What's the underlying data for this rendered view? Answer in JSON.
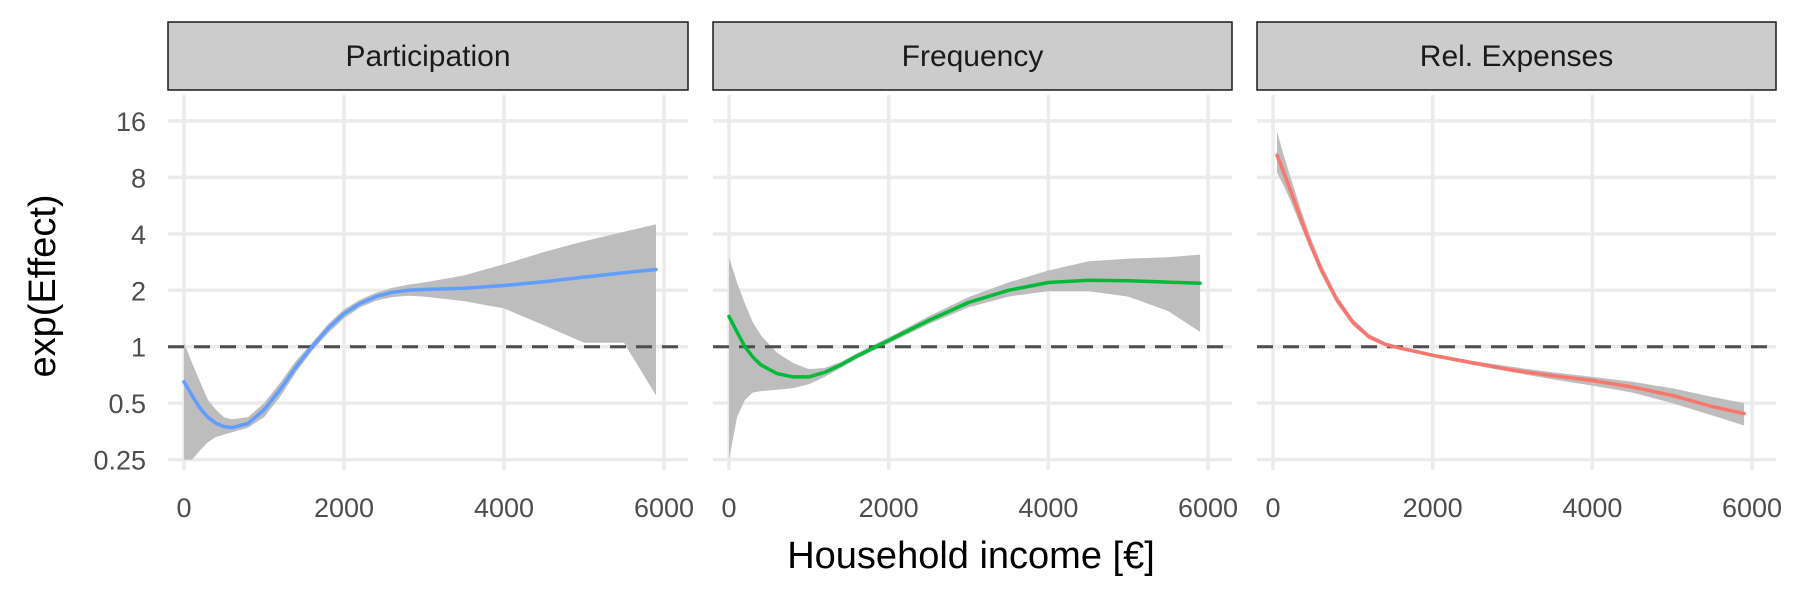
{
  "chart_data": {
    "type": "line",
    "xlabel": "Household income [€]",
    "ylabel": "exp(Effect)",
    "y_scale": "log2",
    "xlim": [
      -200,
      6300
    ],
    "ylim": [
      0.22,
      22
    ],
    "x_ticks": [
      0,
      2000,
      4000,
      6000
    ],
    "x_tick_labels": [
      "0",
      "2000",
      "4000",
      "6000"
    ],
    "y_ticks": [
      0.25,
      0.5,
      1,
      2,
      4,
      8,
      16
    ],
    "y_tick_labels": [
      "0.25",
      "0.5",
      "1",
      "2",
      "4",
      "8",
      "16"
    ],
    "reference_line_y": 1,
    "grid": true,
    "panels": [
      {
        "title": "Participation",
        "color": "#619CFF",
        "x": [
          0,
          100,
          200,
          300,
          400,
          500,
          600,
          800,
          1000,
          1200,
          1400,
          1600,
          1800,
          2000,
          2200,
          2400,
          2600,
          2800,
          3000,
          3500,
          4000,
          4500,
          5000,
          5500,
          5900
        ],
        "y": [
          0.65,
          0.55,
          0.47,
          0.42,
          0.39,
          0.375,
          0.37,
          0.39,
          0.46,
          0.59,
          0.78,
          1.0,
          1.25,
          1.5,
          1.7,
          1.85,
          1.95,
          2.0,
          2.02,
          2.05,
          2.12,
          2.22,
          2.35,
          2.48,
          2.58
        ],
        "lower": [
          0.25,
          0.25,
          0.28,
          0.31,
          0.33,
          0.34,
          0.35,
          0.37,
          0.42,
          0.54,
          0.73,
          0.95,
          1.18,
          1.42,
          1.62,
          1.76,
          1.84,
          1.87,
          1.85,
          1.75,
          1.6,
          1.3,
          1.05,
          1.05,
          0.55
        ],
        "upper": [
          1.05,
          0.82,
          0.65,
          0.52,
          0.46,
          0.42,
          0.41,
          0.42,
          0.5,
          0.64,
          0.84,
          1.05,
          1.32,
          1.58,
          1.78,
          1.94,
          2.06,
          2.14,
          2.2,
          2.4,
          2.75,
          3.2,
          3.65,
          4.1,
          4.5
        ]
      },
      {
        "title": "Frequency",
        "color": "#00BA38",
        "x": [
          0,
          100,
          200,
          300,
          400,
          600,
          800,
          1000,
          1200,
          1400,
          1600,
          1800,
          2000,
          2500,
          3000,
          3500,
          4000,
          4500,
          5000,
          5500,
          5900
        ],
        "y": [
          1.45,
          1.2,
          1.0,
          0.88,
          0.8,
          0.72,
          0.69,
          0.69,
          0.73,
          0.8,
          0.89,
          0.98,
          1.08,
          1.38,
          1.72,
          2.0,
          2.2,
          2.26,
          2.25,
          2.21,
          2.18
        ],
        "lower": [
          0.25,
          0.42,
          0.52,
          0.57,
          0.58,
          0.59,
          0.6,
          0.63,
          0.69,
          0.77,
          0.86,
          0.95,
          1.04,
          1.32,
          1.62,
          1.85,
          1.98,
          1.98,
          1.85,
          1.55,
          1.2
        ],
        "upper": [
          3.0,
          2.2,
          1.7,
          1.35,
          1.15,
          0.93,
          0.82,
          0.76,
          0.77,
          0.83,
          0.92,
          1.02,
          1.12,
          1.45,
          1.84,
          2.2,
          2.55,
          2.85,
          2.95,
          3.0,
          3.1
        ]
      },
      {
        "title": "Rel. Expenses",
        "color": "#F8766D",
        "x": [
          50,
          150,
          250,
          350,
          450,
          600,
          800,
          1000,
          1200,
          1400,
          1600,
          1800,
          2000,
          2500,
          3000,
          3500,
          4000,
          4500,
          5000,
          5500,
          5900
        ],
        "y": [
          10.5,
          8.2,
          6.3,
          4.8,
          3.7,
          2.6,
          1.78,
          1.35,
          1.13,
          1.03,
          0.98,
          0.94,
          0.9,
          0.82,
          0.75,
          0.7,
          0.66,
          0.61,
          0.55,
          0.48,
          0.44
        ],
        "lower": [
          8.5,
          7.0,
          5.6,
          4.4,
          3.45,
          2.45,
          1.7,
          1.3,
          1.1,
          1.01,
          0.96,
          0.92,
          0.88,
          0.8,
          0.73,
          0.67,
          0.62,
          0.57,
          0.5,
          0.43,
          0.38
        ],
        "upper": [
          14.0,
          10.0,
          7.3,
          5.4,
          4.05,
          2.78,
          1.88,
          1.41,
          1.17,
          1.06,
          1.0,
          0.96,
          0.92,
          0.84,
          0.78,
          0.73,
          0.69,
          0.65,
          0.6,
          0.54,
          0.5
        ]
      }
    ]
  }
}
